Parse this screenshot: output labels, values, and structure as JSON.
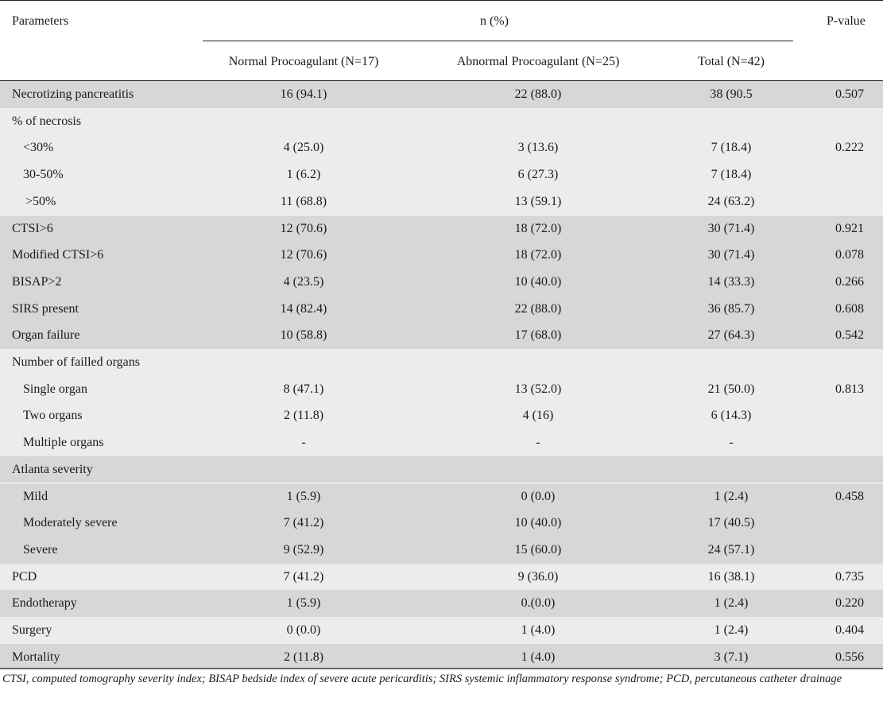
{
  "header": {
    "parameters": "Parameters",
    "group": "n (%)",
    "pvalue": "P-value",
    "col1": "Normal Procoagulant (N=17)",
    "col2": "Abnormal Procoagulant (N=25)",
    "col3": "Total (N=42)"
  },
  "colors": {
    "shade_dark": "#d6d7d9",
    "shade_light": "#ececee",
    "white": "#ffffff"
  },
  "rows": [
    {
      "label": "Necrotizing pancreatitis",
      "normal": "16 (94.1)",
      "abnormal": "22 (88.0)",
      "total": "38 (90.5",
      "p": "0.507",
      "shade": "dark",
      "indent": 0
    },
    {
      "label": "% of necrosis",
      "normal": "",
      "abnormal": "",
      "total": "",
      "p": "",
      "shade": "light",
      "indent": 0
    },
    {
      "label": "<30%",
      "normal": "4 (25.0)",
      "abnormal": "3 (13.6)",
      "total": "7 (18.4)",
      "p": "0.222",
      "shade": "light",
      "indent": 1
    },
    {
      "label": "30-50%",
      "normal": "1 (6.2)",
      "abnormal": "6 (27.3)",
      "total": "7 (18.4)",
      "p": "",
      "shade": "light",
      "indent": 1
    },
    {
      "label": ">50%",
      "normal": "11 (68.8)",
      "abnormal": "13 (59.1)",
      "total": "24 (63.2)",
      "p": "",
      "shade": "light",
      "indent": 2
    },
    {
      "label": "CTSI>6",
      "normal": "12 (70.6)",
      "abnormal": "18 (72.0)",
      "total": "30 (71.4)",
      "p": "0.921",
      "shade": "dark",
      "indent": 0
    },
    {
      "label": "Modified CTSI>6",
      "normal": "12 (70.6)",
      "abnormal": "18 (72.0)",
      "total": "30 (71.4)",
      "p": "0.078",
      "shade": "dark",
      "indent": 0
    },
    {
      "label": "BISAP>2",
      "normal": "4 (23.5)",
      "abnormal": "10 (40.0)",
      "total": "14 (33.3)",
      "p": "0.266",
      "shade": "dark",
      "indent": 0
    },
    {
      "label": "SIRS present",
      "normal": "14 (82.4)",
      "abnormal": "22 (88.0)",
      "total": "36 (85.7)",
      "p": "0.608",
      "shade": "dark",
      "indent": 0
    },
    {
      "label": "Organ failure",
      "normal": "10 (58.8)",
      "abnormal": "17 (68.0)",
      "total": "27 (64.3)",
      "p": "0.542",
      "shade": "dark",
      "indent": 0
    },
    {
      "label": "Number of failled organs",
      "normal": "",
      "abnormal": "",
      "total": "",
      "p": "",
      "shade": "light",
      "indent": 0
    },
    {
      "label": "Single organ",
      "normal": "8 (47.1)",
      "abnormal": "13 (52.0)",
      "total": "21 (50.0)",
      "p": "0.813",
      "shade": "light",
      "indent": 1
    },
    {
      "label": "Two organs",
      "normal": "2 (11.8)",
      "abnormal": "4 (16)",
      "total": "6 (14.3)",
      "p": "",
      "shade": "light",
      "indent": 1
    },
    {
      "label": "Multiple organs",
      "normal": "-",
      "abnormal": "-",
      "total": "-",
      "p": "",
      "shade": "light",
      "indent": 1
    },
    {
      "label": "Atlanta severity",
      "normal": "",
      "abnormal": "",
      "total": "",
      "p": "",
      "shade": "dark",
      "indent": 0
    },
    {
      "label": "Mild",
      "normal": "1 (5.9)",
      "abnormal": "0 (0.0)",
      "total": "1 (2.4)",
      "p": "0.458",
      "shade": "dark",
      "indent": 1
    },
    {
      "label": "Moderately severe",
      "normal": "7 (41.2)",
      "abnormal": "10 (40.0)",
      "total": "17 (40.5)",
      "p": "",
      "shade": "dark",
      "indent": 1
    },
    {
      "label": "Severe",
      "normal": "9 (52.9)",
      "abnormal": "15 (60.0)",
      "total": "24 (57.1)",
      "p": "",
      "shade": "dark",
      "indent": 1
    },
    {
      "label": "PCD",
      "normal": "7 (41.2)",
      "abnormal": "9 (36.0)",
      "total": "16 (38.1)",
      "p": "0.735",
      "shade": "light",
      "indent": 0
    },
    {
      "label": "Endotherapy",
      "normal": "1 (5.9)",
      "abnormal": "0.(0.0)",
      "total": "1 (2.4)",
      "p": "0.220",
      "shade": "dark",
      "indent": 0
    },
    {
      "label": "Surgery",
      "normal": "0 (0.0)",
      "abnormal": "1 (4.0)",
      "total": "1 (2.4)",
      "p": "0.404",
      "shade": "light",
      "indent": 0
    },
    {
      "label": "Mortality",
      "normal": "2 (11.8)",
      "abnormal": "1 (4.0)",
      "total": "3 (7.1)",
      "p": "0.556",
      "shade": "dark",
      "indent": 0
    }
  ],
  "footnote": "CTSI, computed tomography severity index; BISAP bedside index of severe acute pericarditis; SIRS systemic inflammatory response syndrome; PCD, percutaneous catheter drainage"
}
